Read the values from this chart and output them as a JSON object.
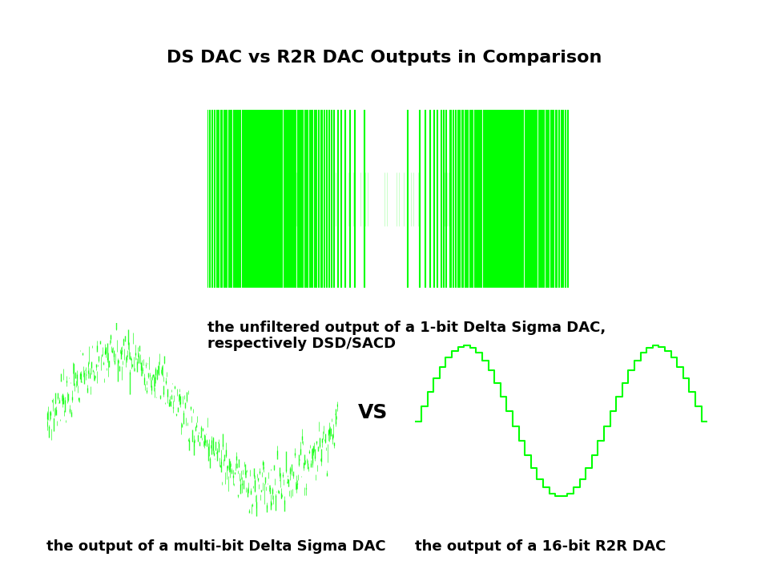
{
  "title": "DS DAC vs R2R DAC Outputs in Comparison",
  "title_fontsize": 16,
  "title_fontweight": "bold",
  "caption_top": "the unfiltered output of a 1-bit Delta Sigma DAC,\nrespectively DSD/SACD",
  "caption_bottom_left": "the output of a multi-bit Delta Sigma DAC",
  "caption_bottom_right": "the output of a 16-bit R2R DAC",
  "vs_text": "VS",
  "bg_color": "#ffffff",
  "plot_bg": "#000000",
  "line_color": "#00ff00",
  "caption_fontsize": 13,
  "caption_fontweight": "bold"
}
